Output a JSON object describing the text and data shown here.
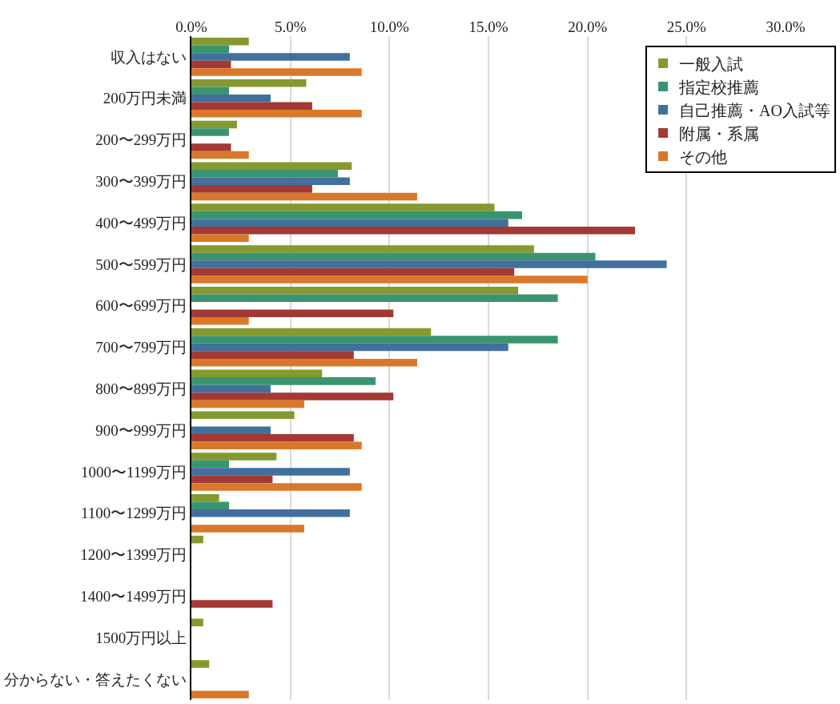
{
  "chart_data": {
    "type": "bar",
    "orientation": "horizontal",
    "categories": [
      "収入はない",
      "200万円未満",
      "200〜299万円",
      "300〜399万円",
      "400〜499万円",
      "500〜599万円",
      "600〜699万円",
      "700〜799万円",
      "800〜899万円",
      "900〜999万円",
      "1000〜1199万円",
      "1100〜1299万円",
      "1200〜1399万円",
      "1400〜1499万円",
      "1500万円以上",
      "分からない・答えたくない"
    ],
    "series": [
      {
        "name": "一般入試",
        "color": "#84992f",
        "values": [
          2.9,
          5.8,
          2.3,
          8.1,
          15.3,
          17.3,
          16.5,
          12.1,
          6.6,
          5.2,
          4.3,
          1.4,
          0.6,
          null,
          0.6,
          0.9
        ]
      },
      {
        "name": "指定校推薦",
        "color": "#3a9470",
        "values": [
          1.9,
          1.9,
          1.9,
          7.4,
          16.7,
          20.4,
          18.5,
          18.5,
          9.3,
          null,
          1.9,
          1.9,
          null,
          null,
          null,
          null
        ]
      },
      {
        "name": "自己推薦・AO入試等",
        "color": "#42709c",
        "values": [
          8.0,
          4.0,
          null,
          8.0,
          16.0,
          24.0,
          null,
          16.0,
          4.0,
          4.0,
          8.0,
          8.0,
          null,
          null,
          null,
          null
        ]
      },
      {
        "name": "附属・系属",
        "color": "#a23a33",
        "values": [
          2.0,
          6.1,
          2.0,
          6.1,
          22.4,
          16.3,
          10.2,
          8.2,
          10.2,
          8.2,
          4.1,
          null,
          null,
          4.1,
          null,
          null
        ]
      },
      {
        "name": "その他",
        "color": "#d9782b",
        "values": [
          8.6,
          8.6,
          2.9,
          11.4,
          2.9,
          20.0,
          2.9,
          11.4,
          5.7,
          8.6,
          8.6,
          5.7,
          null,
          null,
          null,
          2.9
        ]
      }
    ],
    "xlim": [
      0,
      30
    ],
    "xticks": [
      {
        "value": 0,
        "label": "0.0%"
      },
      {
        "value": 5,
        "label": "5.0%"
      },
      {
        "value": 10,
        "label": "10.0%"
      },
      {
        "value": 15,
        "label": "15.0%"
      },
      {
        "value": 20,
        "label": "20.0%"
      },
      {
        "value": 25,
        "label": "25.0%"
      },
      {
        "value": 30,
        "label": "30.0%"
      }
    ],
    "grid": "x",
    "legend": "top right"
  }
}
